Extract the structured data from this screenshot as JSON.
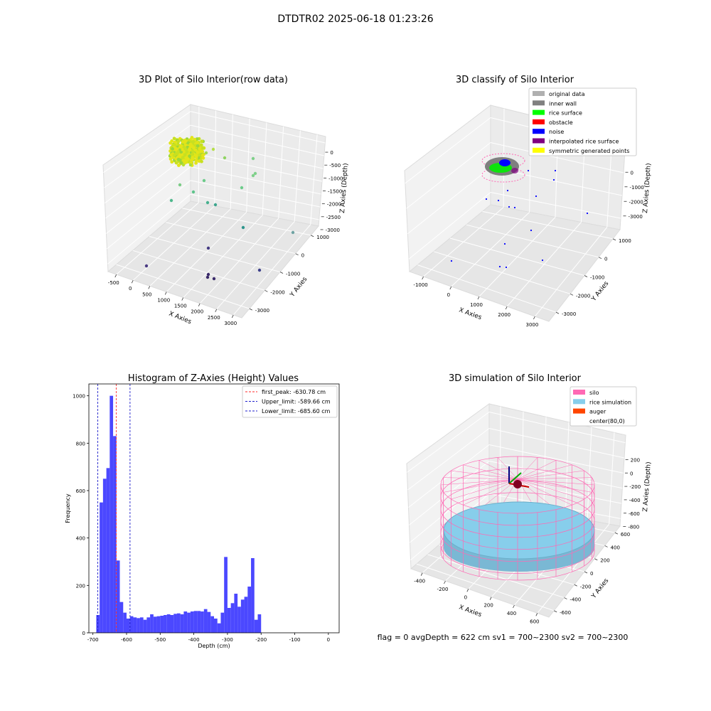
{
  "figure": {
    "suptitle": "DTDTR02 2025-06-18 01:23:26",
    "status_text": "flag = 0     avgDepth = 622 cm  sv1 = 700~2300  sv2 = 700~2300"
  },
  "colors": {
    "hist_bar": "#4b48ff",
    "first_peak": "#ff2a2a",
    "limit_line": "#1f1fcc",
    "silo": "#ff69b4",
    "rice_simulation": "#87ceeb",
    "auger": "#ff4500",
    "rice_surface": "#00ff00",
    "obstacle": "#ff0000",
    "noise": "#0000ff",
    "interpolated": "#800080",
    "symmetric": "#ffff00",
    "original": "#b0b0b0",
    "inner_wall": "#808080"
  },
  "chart_data": [
    {
      "type": "scatter",
      "title": "3D Plot of Silo Interior(row data)",
      "xlabel": "X Axies",
      "ylabel": "Y Axies",
      "zlabel": "Z Axies (Depth)",
      "x_ticks": [
        "-500",
        "0",
        "500",
        "1000",
        "1500",
        "2000",
        "2500",
        "3000"
      ],
      "y_ticks": [
        "1000",
        "0",
        "-1000",
        "-2000",
        "-3000"
      ],
      "z_ticks": [
        "0",
        "-500",
        "-1000",
        "-1500",
        "-2000",
        "-2500",
        "-3000"
      ]
    },
    {
      "type": "scatter",
      "title": "3D classify of Silo Interior",
      "xlabel": "X Axies",
      "ylabel": "Y Axies",
      "zlabel": "Z Axies (Depth)",
      "x_ticks": [
        "-1000",
        "0",
        "1000",
        "2000",
        "3000"
      ],
      "y_ticks": [
        "1000",
        "0",
        "-1000",
        "-2000",
        "-3000"
      ],
      "z_ticks": [
        "0",
        "-1000",
        "-2000",
        "-3000"
      ],
      "legend": [
        "original data",
        "inner wall",
        "rice surface",
        "obstacle",
        "noise",
        "interpolated rice surface",
        "symmetric generated points"
      ],
      "legend_placement": "top-right"
    },
    {
      "type": "bar",
      "title": "Histogram of Z-Axies (Height) Values",
      "xlabel": "Depth (cm)",
      "ylabel": "Frequency",
      "xlim": [
        -712,
        32
      ],
      "ylim": [
        0,
        1050
      ],
      "bin_start": -690,
      "bin_width": 10,
      "values": [
        75,
        550,
        650,
        695,
        1000,
        830,
        305,
        130,
        85,
        60,
        70,
        65,
        62,
        65,
        55,
        65,
        78,
        68,
        70,
        72,
        75,
        78,
        75,
        80,
        82,
        78,
        90,
        85,
        90,
        92,
        92,
        90,
        100,
        88,
        70,
        60,
        40,
        85,
        320,
        105,
        125,
        165,
        110,
        140,
        152,
        195,
        315,
        55,
        78
      ],
      "x_ticks": [
        "-700",
        "-600",
        "-500",
        "-400",
        "-300",
        "-200",
        "-100",
        "0"
      ],
      "y_ticks": [
        "0",
        "200",
        "400",
        "600",
        "800",
        "1000"
      ],
      "lines": [
        {
          "label": "first_peak: -630.78 cm",
          "value": -630.78,
          "style": "first_peak"
        },
        {
          "label": "Upper_limit: -589.66 cm",
          "value": -589.66,
          "style": "limit"
        },
        {
          "label": "Lower_limit: -685.60 cm",
          "value": -685.6,
          "style": "limit"
        }
      ],
      "legend_placement": "top-right",
      "grid": false
    },
    {
      "type": "scatter",
      "title": "3D simulation of Silo Interior",
      "xlabel": "X Axies",
      "ylabel": "Y Axies",
      "zlabel": "Z Axies (Depth)",
      "x_ticks": [
        "-400",
        "-200",
        "0",
        "200",
        "400",
        "600"
      ],
      "y_ticks": [
        "600",
        "400",
        "200",
        "0",
        "-200",
        "-400",
        "-600"
      ],
      "z_ticks": [
        "200",
        "0",
        "-200",
        "-400",
        "-600",
        "-800"
      ],
      "legend": [
        "silo",
        "rice simulation",
        "auger",
        "center(80,0)"
      ],
      "legend_placement": "top-right"
    }
  ]
}
